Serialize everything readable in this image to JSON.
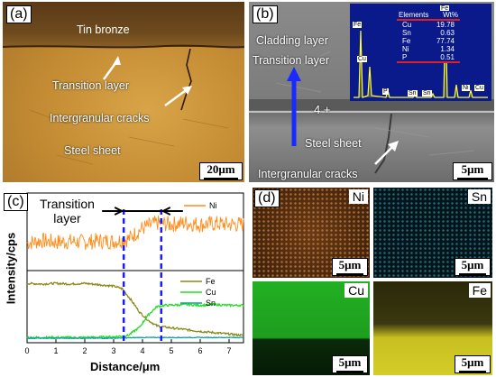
{
  "panel_a": {
    "label": "(a)",
    "tin_bronze": "Tin bronze",
    "transition_layer": "Transition layer",
    "intergranular_cracks": "Intergranular cracks",
    "steel_sheet": "Steel sheet",
    "scale": "20μm"
  },
  "panel_b": {
    "label": "(b)",
    "cladding_layer": "Cladding layer",
    "transition_layer": "Transition layer",
    "point": "4",
    "steel_sheet": "Steel sheet",
    "intergranular_cracks": "Intergranular cracks",
    "scale": "5μm",
    "eds_table": {
      "headers": [
        "Elements",
        "Wt%"
      ],
      "rows": [
        [
          "Cu",
          "19.78"
        ],
        [
          "Sn",
          "0.63"
        ],
        [
          "Fe",
          "77.74"
        ],
        [
          "Ni",
          "1.34"
        ],
        [
          "P",
          "0.51"
        ]
      ]
    },
    "eds_peaks": [
      "Fe",
      "Cu",
      "P",
      "Sn",
      "Sn",
      "Fe",
      "Ni",
      "Cu"
    ]
  },
  "panel_c": {
    "label": "(c)",
    "transition_label_line1": "Transition",
    "transition_label_line2": "layer",
    "ylabel": "Intensity/cps",
    "xlabel": "Distance/μm"
  },
  "chart_data": {
    "type": "line",
    "xlabel": "Distance/μm",
    "ylabel": "Intensity/cps",
    "xlim": [
      0,
      7.5
    ],
    "xticks": [
      "0",
      "1",
      "2",
      "3",
      "4",
      "5",
      "6",
      "7"
    ],
    "transition_bounds": [
      3.35,
      4.65
    ],
    "series": [
      {
        "name": "Ni",
        "color": "#ff8c1a",
        "x": [
          0,
          0.5,
          1,
          1.5,
          2,
          2.5,
          3,
          3.5,
          4,
          4.5,
          5,
          5.5,
          6,
          6.5,
          7,
          7.5
        ],
        "values": [
          0.35,
          0.38,
          0.36,
          0.37,
          0.36,
          0.38,
          0.37,
          0.4,
          0.55,
          0.62,
          0.6,
          0.62,
          0.6,
          0.61,
          0.6,
          0.6
        ]
      },
      {
        "name": "Fe",
        "color": "#8a8a1a",
        "x": [
          0,
          0.5,
          1,
          1.5,
          2,
          2.5,
          3,
          3.3,
          3.6,
          3.9,
          4.2,
          4.5,
          4.8,
          5.2,
          6,
          6.5,
          7,
          7.5
        ],
        "values": [
          0.84,
          0.83,
          0.84,
          0.83,
          0.84,
          0.82,
          0.8,
          0.76,
          0.6,
          0.42,
          0.3,
          0.22,
          0.2,
          0.18,
          0.14,
          0.12,
          0.1,
          0.08
        ]
      },
      {
        "name": "Cu",
        "color": "#22dd22",
        "x": [
          0,
          1,
          2,
          3,
          3.5,
          3.9,
          4.2,
          4.5,
          4.8,
          5.5,
          6,
          6.5,
          7,
          7.5
        ],
        "values": [
          0.05,
          0.05,
          0.05,
          0.06,
          0.08,
          0.2,
          0.38,
          0.5,
          0.52,
          0.53,
          0.52,
          0.53,
          0.52,
          0.52
        ]
      },
      {
        "name": "Sn",
        "color": "#0aa0a0",
        "x": [
          0,
          1,
          2,
          3,
          4,
          5,
          6,
          7,
          7.5
        ],
        "values": [
          0.04,
          0.04,
          0.04,
          0.04,
          0.05,
          0.05,
          0.05,
          0.05,
          0.05
        ]
      }
    ]
  },
  "panel_d": {
    "label": "(d)",
    "maps": [
      {
        "element": "Ni",
        "scale": "5μm",
        "color": "#b06a2a"
      },
      {
        "element": "Sn",
        "scale": "5μm",
        "color": "#1a6a78"
      },
      {
        "element": "Cu",
        "scale": "5μm",
        "color": "#22aa22"
      },
      {
        "element": "Fe",
        "scale": "5μm",
        "color": "#c8c020"
      }
    ]
  }
}
